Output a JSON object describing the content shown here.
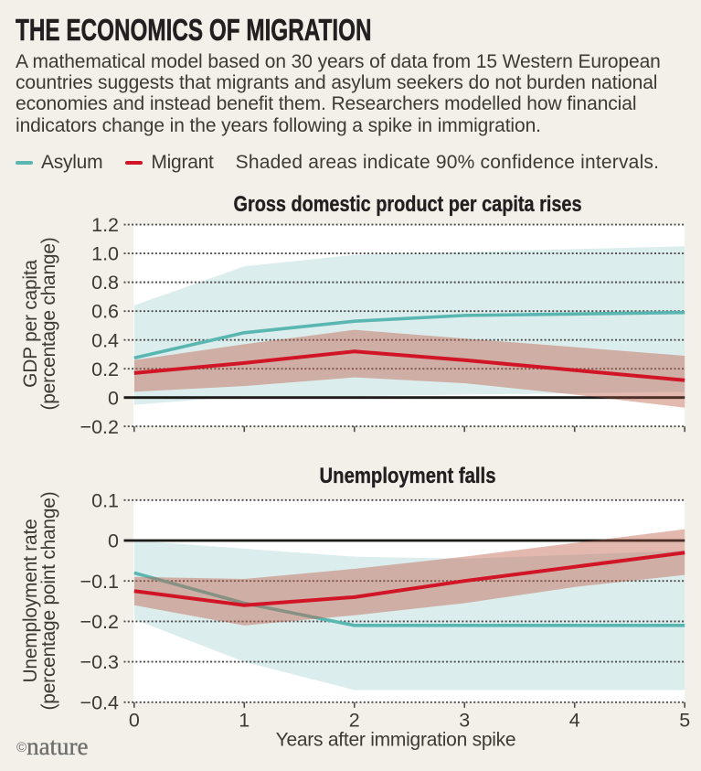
{
  "infographic": {
    "title": "THE ECONOMICS OF MIGRATION",
    "description_lines": [
      "A mathematical model based on 30 years of data from 15 Western European",
      "countries suggests that migrants and asylum seekers do not burden national",
      "economies and instead benefit them. Researchers modelled how financial",
      "indicators change in the years following a spike in immigration."
    ],
    "logo": {
      "copyright": "©",
      "brand": "nature"
    }
  },
  "legend": {
    "items": [
      {
        "label": "Asylum",
        "color": "#5ab6b1"
      },
      {
        "label": "Migrant",
        "color": "#d11527"
      }
    ],
    "note": "Shaded areas indicate 90% confidence intervals."
  },
  "colors": {
    "page_bg": "#f2f0e9",
    "plot_bg": "#ffffff",
    "text": "#3d3935",
    "title": "#231f20",
    "grid": "#4b4b4b",
    "zero_line": "#1d1c1a",
    "asylum_line": "#5ab6b1",
    "migrant_line": "#d11527",
    "asylum_band": "#dceded",
    "migrant_band": "rgba(192,96,72,0.44)",
    "logo": "#6e6e6c"
  },
  "chart_data": [
    {
      "type": "line",
      "title": "Gross domestic product per capita rises",
      "ylabel_lines": [
        "GDP per capita",
        "(percentage change)"
      ],
      "x": [
        0,
        1,
        2,
        3,
        4,
        5
      ],
      "xlim": [
        0,
        5
      ],
      "ylim": [
        -0.2,
        1.2
      ],
      "yticks": [
        1.2,
        1.0,
        0.8,
        0.6,
        0.4,
        0.2,
        0,
        -0.2
      ],
      "ytick_labels": [
        "1.2",
        "1.0",
        "0.8",
        "0.6",
        "0.4",
        "0.2",
        "0",
        "−0.2"
      ],
      "zero_line": 0,
      "grid": "dotted",
      "series": [
        {
          "name": "Asylum",
          "values": [
            0.275,
            0.45,
            0.53,
            0.57,
            0.58,
            0.59
          ],
          "band_upper": [
            0.64,
            0.91,
            0.99,
            1.01,
            1.03,
            1.05
          ],
          "band_lower": [
            -0.05,
            0.01,
            0.01,
            0.02,
            0.03,
            0.04
          ]
        },
        {
          "name": "Migrant",
          "values": [
            0.17,
            0.24,
            0.32,
            0.26,
            0.19,
            0.12
          ],
          "band_upper": [
            0.26,
            0.37,
            0.47,
            0.41,
            0.35,
            0.29
          ],
          "band_lower": [
            0.04,
            0.08,
            0.14,
            0.1,
            0.02,
            -0.07
          ]
        }
      ]
    },
    {
      "type": "line",
      "title": "Unemployment falls",
      "ylabel_lines": [
        "Unemployment rate",
        "(percentage point change)"
      ],
      "xlabel": "Years after immigration spike",
      "x": [
        0,
        1,
        2,
        3,
        4,
        5
      ],
      "xlim": [
        0,
        5
      ],
      "xtick_labels": [
        "0",
        "1",
        "2",
        "3",
        "4",
        "5"
      ],
      "ylim": [
        -0.4,
        0.1
      ],
      "yticks": [
        0.1,
        0,
        -0.1,
        -0.2,
        -0.3,
        -0.4
      ],
      "ytick_labels": [
        "0.1",
        "0",
        "−0.1",
        "−0.2",
        "−0.3",
        "−0.4"
      ],
      "zero_line": 0,
      "grid": "dotted",
      "series": [
        {
          "name": "Asylum",
          "values": [
            -0.08,
            -0.155,
            -0.21,
            -0.21,
            -0.21,
            -0.21
          ],
          "band_upper": [
            0.0,
            -0.02,
            -0.04,
            -0.045,
            -0.035,
            -0.025
          ],
          "band_lower": [
            -0.195,
            -0.3,
            -0.37,
            -0.37,
            -0.37,
            -0.37
          ]
        },
        {
          "name": "Migrant",
          "values": [
            -0.125,
            -0.16,
            -0.14,
            -0.1,
            -0.065,
            -0.03
          ],
          "band_upper": [
            -0.09,
            -0.095,
            -0.07,
            -0.04,
            -0.006,
            0.028
          ],
          "band_lower": [
            -0.16,
            -0.21,
            -0.185,
            -0.155,
            -0.115,
            -0.085
          ]
        }
      ]
    }
  ]
}
